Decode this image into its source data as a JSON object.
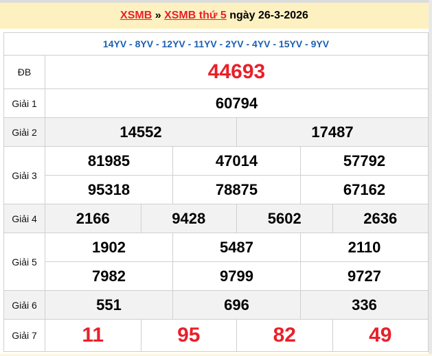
{
  "header": {
    "link1": "XSMB",
    "sep": " » ",
    "link2": "XSMB thứ 5",
    "date_text": " ngày 26-3-2026"
  },
  "codes": "14YV - 8YV - 12YV - 11YV - 2YV - 4YV - 15YV - 9YV",
  "prizes": {
    "db": {
      "label": "ĐB",
      "values": [
        "44693"
      ]
    },
    "g1": {
      "label": "Giải 1",
      "values": [
        "60794"
      ]
    },
    "g2": {
      "label": "Giải 2",
      "values": [
        "14552",
        "17487"
      ]
    },
    "g3": {
      "label": "Giải 3",
      "values": [
        "81985",
        "47014",
        "57792",
        "95318",
        "78875",
        "67162"
      ]
    },
    "g4": {
      "label": "Giải 4",
      "values": [
        "2166",
        "9428",
        "5602",
        "2636"
      ]
    },
    "g5": {
      "label": "Giải 5",
      "values": [
        "1902",
        "5487",
        "2110",
        "7982",
        "9799",
        "9727"
      ]
    },
    "g6": {
      "label": "Giải 6",
      "values": [
        "551",
        "696",
        "336"
      ]
    },
    "g7": {
      "label": "Giải 7",
      "values": [
        "11",
        "95",
        "82",
        "49"
      ]
    }
  },
  "colors": {
    "accent_red": "#e8202a",
    "code_blue": "#1a5fb4",
    "header_bg": "#fdf1c2"
  }
}
